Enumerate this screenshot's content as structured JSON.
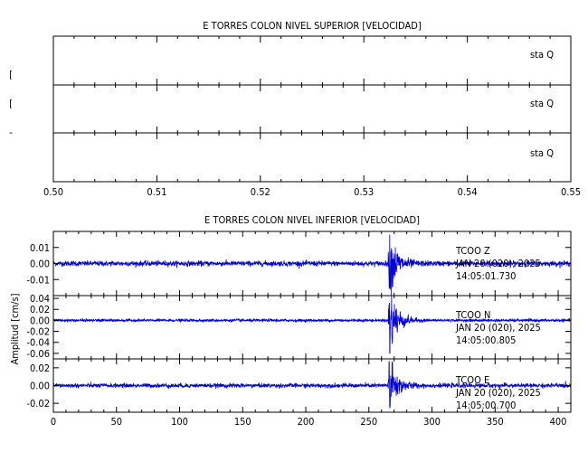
{
  "chart_data": [
    {
      "type": "line",
      "title": "E TORRES COLON NIVEL SUPERIOR [VELOCIDAD]",
      "xlim": [
        0.5,
        0.55
      ],
      "x_ticks": [
        "0.50",
        "0.51",
        "0.52",
        "0.53",
        "0.54",
        "0.55"
      ],
      "grid": false,
      "ylabel_fragments": [
        "[",
        "[",
        "-"
      ],
      "panels": [
        {
          "name": "sta Q",
          "label": "sta   Q",
          "values": []
        },
        {
          "name": "sta Q",
          "label": "sta   Q",
          "values": []
        },
        {
          "name": "sta Q",
          "label": "sta   Q",
          "values": []
        }
      ]
    },
    {
      "type": "line",
      "title": "E TORRES COLON NIVEL INFERIOR [VELOCIDAD]",
      "ylabel": "Amplitud  [cm/s]",
      "xlim": [
        0,
        410
      ],
      "x_ticks": [
        "0",
        "50",
        "100",
        "150",
        "200",
        "250",
        "300",
        "350",
        "400"
      ],
      "grid": false,
      "line_color": "#0000dd",
      "series": [
        {
          "station": "TCOO   Z",
          "date": "JAN 20 (020), 2025",
          "time": "14:05:01.730",
          "ylim": [
            -0.02,
            0.02
          ],
          "y_ticks": [
            "0.01",
            "0.00",
            "-0.01"
          ],
          "y_tick_values": [
            0.01,
            0.0,
            -0.01
          ],
          "noise_amplitude": 0.0008,
          "event": {
            "onset": 265,
            "peak_time": 266.5,
            "peak_amplitude": 0.018,
            "min_amplitude": -0.016,
            "coda_end": 300
          }
        },
        {
          "station": "TCOO   N",
          "date": "JAN 20 (020), 2025",
          "time": "14:05:00.805",
          "ylim": [
            -0.07,
            0.045
          ],
          "y_ticks": [
            "0.04",
            "0.02",
            "0.00",
            "-0.02",
            "-0.04",
            "-0.06"
          ],
          "y_tick_values": [
            0.04,
            0.02,
            0.0,
            -0.02,
            -0.04,
            -0.06
          ],
          "noise_amplitude": 0.0012,
          "event": {
            "onset": 265,
            "peak_time": 266.0,
            "peak_amplitude": 0.028,
            "min_amplitude": -0.06,
            "coda_end": 295
          }
        },
        {
          "station": "TCOO   E",
          "date": "JAN 20 (020), 2025",
          "time": "14:05:00.700",
          "ylim": [
            -0.03,
            0.03
          ],
          "y_ticks": [
            "0.02",
            "0.00",
            "-0.02"
          ],
          "y_tick_values": [
            0.02,
            0.0,
            -0.02
          ],
          "noise_amplitude": 0.0012,
          "event": {
            "onset": 265,
            "peak_time": 266.0,
            "peak_amplitude": 0.027,
            "min_amplitude": -0.025,
            "coda_end": 300
          }
        }
      ]
    }
  ]
}
